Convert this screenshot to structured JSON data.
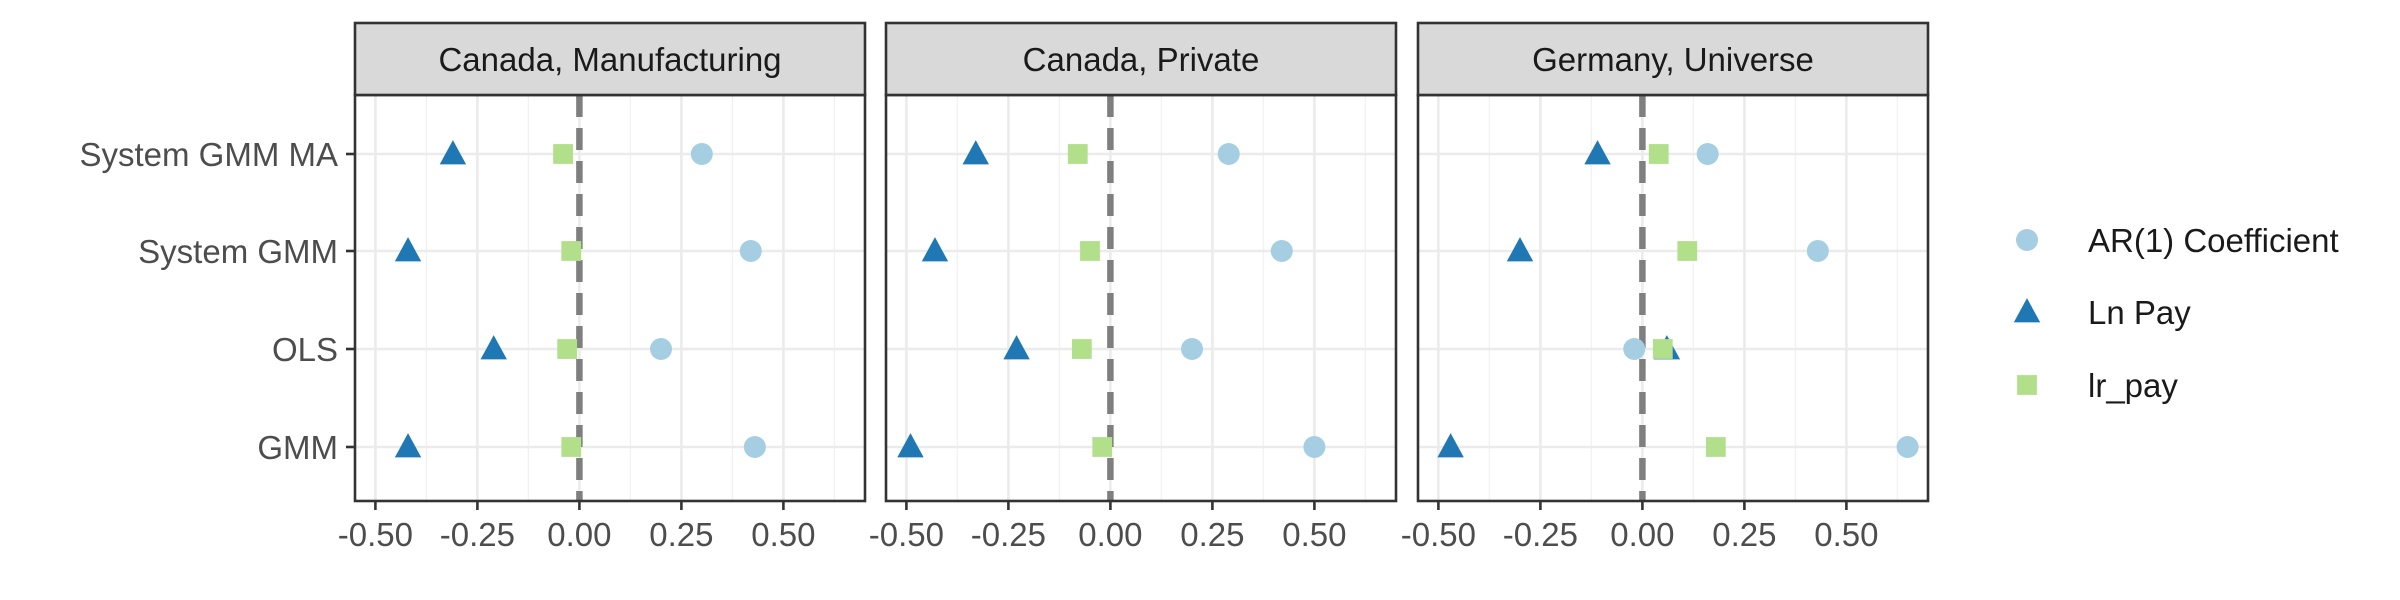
{
  "chart_data": {
    "type": "scatter",
    "categories": [
      "System GMM MA",
      "System GMM",
      "OLS",
      "GMM"
    ],
    "x_ticks": [
      "-0.50",
      "-0.25",
      "0.00",
      "0.25",
      "0.50"
    ],
    "xlim": [
      -0.55,
      0.7
    ],
    "reference_line": 0,
    "grid": true,
    "legend_position": "right",
    "series": [
      {
        "name": "AR(1) Coefficient",
        "shape": "circle",
        "color": "#A6CEE3"
      },
      {
        "name": "Ln Pay",
        "shape": "triangle",
        "color": "#1F78B4"
      },
      {
        "name": "lr_pay",
        "shape": "square",
        "color": "#B2DF8A"
      }
    ],
    "panels": [
      {
        "title": "Canada, Manufacturing",
        "values": {
          "AR(1) Coefficient": [
            0.3,
            0.42,
            0.2,
            0.43
          ],
          "Ln Pay": [
            -0.31,
            -0.42,
            -0.21,
            -0.42
          ],
          "lr_pay": [
            -0.04,
            -0.02,
            -0.03,
            -0.02
          ]
        }
      },
      {
        "title": "Canada, Private",
        "values": {
          "AR(1) Coefficient": [
            0.29,
            0.42,
            0.2,
            0.5
          ],
          "Ln Pay": [
            -0.33,
            -0.43,
            -0.23,
            -0.49
          ],
          "lr_pay": [
            -0.08,
            -0.05,
            -0.07,
            -0.02
          ]
        }
      },
      {
        "title": "Germany, Universe",
        "values": {
          "AR(1) Coefficient": [
            0.16,
            0.43,
            -0.02,
            0.65
          ],
          "Ln Pay": [
            -0.11,
            -0.3,
            0.06,
            -0.47
          ],
          "lr_pay": [
            0.04,
            0.11,
            0.05,
            0.18
          ]
        }
      }
    ]
  }
}
